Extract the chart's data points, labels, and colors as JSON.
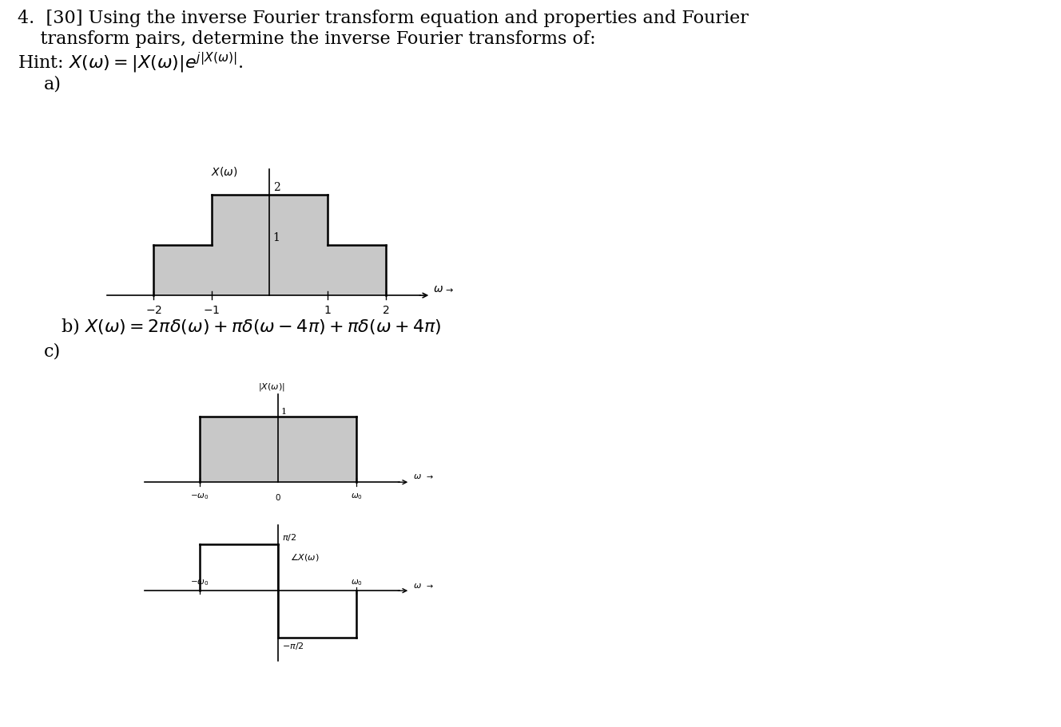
{
  "bg_color": "#ffffff",
  "text_color": "#000000",
  "graph_fill_color": "#c8c8c8",
  "graph_line_color": "#000000",
  "header_line1": "4.  [30] Using the inverse Fourier transform equation and properties and Fourier",
  "header_line2": "    transform pairs, determine the inverse Fourier transforms of:",
  "hint_line": "Hint: $X(\\omega) = |X(\\omega)|e^{j|X(\\omega)|}$.",
  "part_a": "a)",
  "part_b": "b) $X(\\omega) = 2\\pi\\delta(\\omega) + \\pi\\delta(\\omega - 4\\pi) + \\pi\\delta(\\omega + 4\\pi)$",
  "part_c": "c)",
  "fontsize_main": 16,
  "fontsize_graph": 11,
  "fontsize_small": 9
}
